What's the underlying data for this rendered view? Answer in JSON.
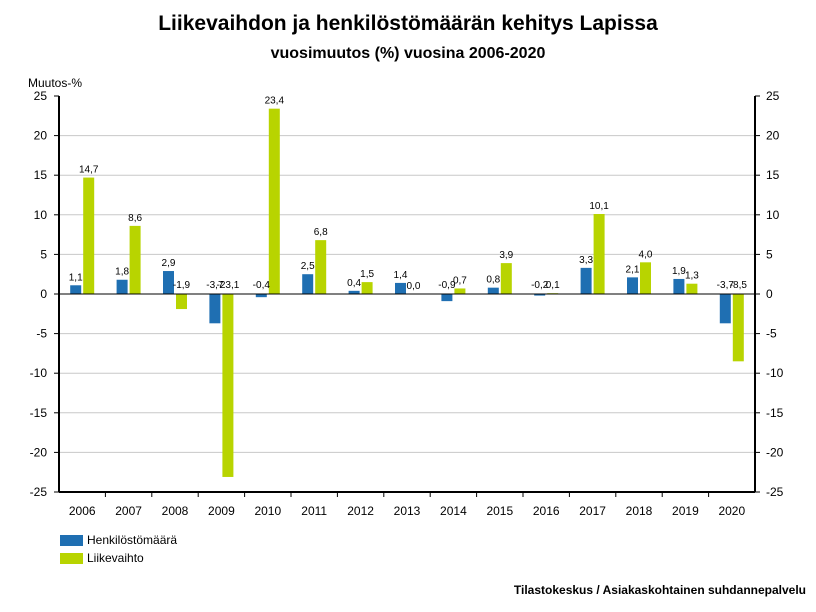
{
  "chart_data": {
    "type": "bar",
    "title": "Liikevaihdon ja henkilöstömäärän kehitys Lapissa",
    "subtitle": "vuosimuutos (%) vuosina 2006-2020",
    "ylabel": "Muutos-%",
    "ylim": [
      -25,
      25
    ],
    "yticks": [
      "25",
      "20",
      "15",
      "10",
      "5",
      "0",
      "-5",
      "-10",
      "-15",
      "-20",
      "-25"
    ],
    "grid": true,
    "legend_position": "bottom-left",
    "categories": [
      "2006",
      "2007",
      "2008",
      "2009",
      "2010",
      "2011",
      "2012",
      "2013",
      "2014",
      "2015",
      "2016",
      "2017",
      "2018",
      "2019",
      "2020"
    ],
    "series": [
      {
        "name": "Henkilöstömäärä",
        "color": "#1f6fb2",
        "values": [
          1.1,
          1.8,
          2.9,
          -3.7,
          -0.4,
          2.5,
          0.4,
          1.4,
          -0.9,
          0.8,
          -0.2,
          3.3,
          2.1,
          1.9,
          -3.7
        ],
        "labels": [
          "1,1",
          "1,8",
          "2,9",
          "-3,7",
          "-0,4",
          "2,5",
          "0,4",
          "1,4",
          "-0,9",
          "0,8",
          "-0,2",
          "3,3",
          "2,1",
          "1,9",
          "-3,7"
        ]
      },
      {
        "name": "Liikevaihto",
        "color": "#b8d400",
        "values": [
          14.7,
          8.6,
          -1.9,
          -23.1,
          23.4,
          6.8,
          1.5,
          0.0,
          0.7,
          3.9,
          0.1,
          10.1,
          4.0,
          1.3,
          -8.5
        ],
        "labels": [
          "14,7",
          "8,6",
          "-1,9",
          "-23,1",
          "23,4",
          "6,8",
          "1,5",
          "0,0",
          "0,7",
          "3,9",
          "0,1",
          "10,1",
          "4,0",
          "1,3",
          "-8,5"
        ]
      }
    ],
    "source": "Tilastokeskus / Asiakaskohtainen suhdannepalvelu"
  }
}
